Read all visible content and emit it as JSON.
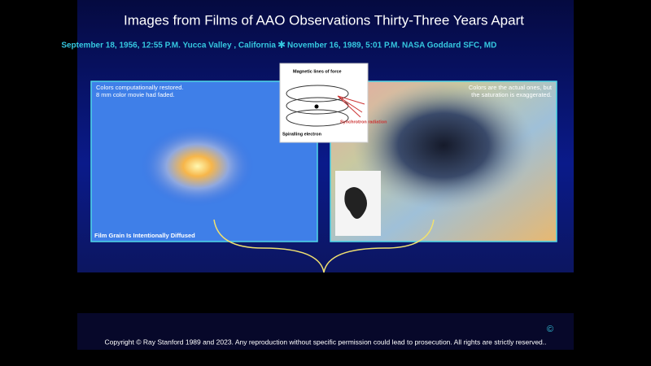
{
  "title": "Images from Films of  AAO Observations Thirty-Three Years Apart",
  "subtitle": {
    "left": "September 18, 1956, 12:55 P.M.  Yucca Valley , California",
    "right": "November 16, 1989, 5:01 P.M. NASA Goddard  SFC, MD"
  },
  "left_image": {
    "note": [
      "Colors computationally restored.",
      "8 mm color movie had faded."
    ],
    "caption": "Film Grain Is Intentionally Diffused"
  },
  "right_image": {
    "note": [
      "Colors are the actual ones,  but",
      "the saturation is  exaggerated."
    ]
  },
  "diagram": {
    "labels": [
      "Magnetic lines of force",
      "Synchrotron radiation",
      "Spiralling electron"
    ]
  },
  "footer": {
    "symbol": "©",
    "text": "Copyright © Ray Stanford 1989 and 2023.  Any reproduction without specific permission could lead to prosecution. All rights are strictly reserved.."
  }
}
